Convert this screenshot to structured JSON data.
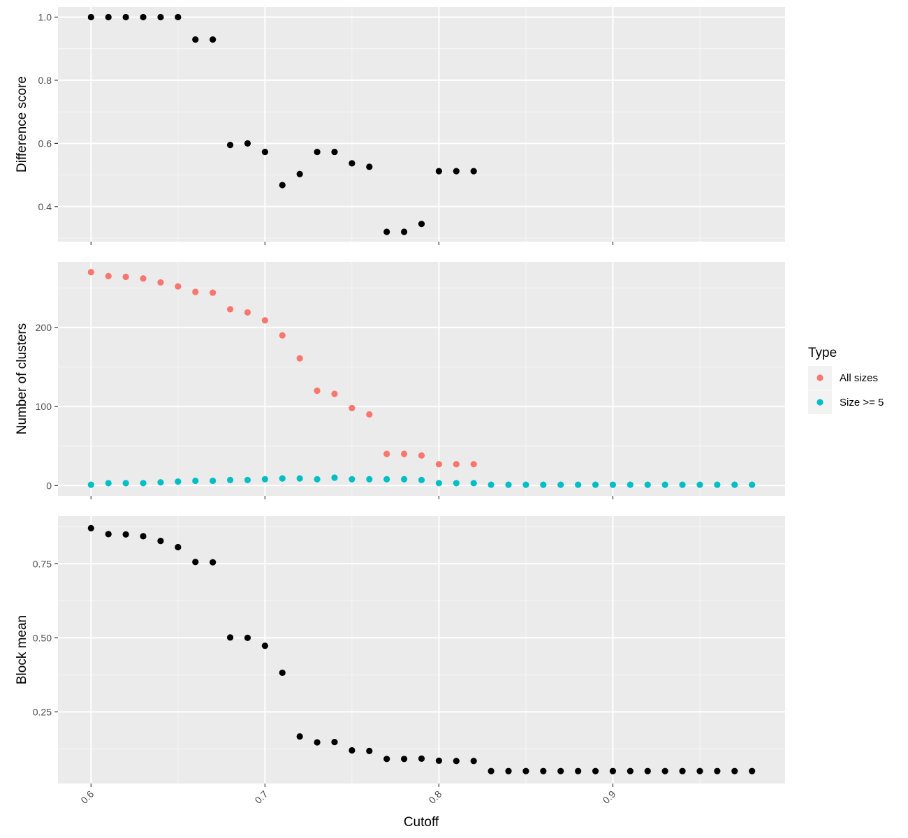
{
  "chart_data": {
    "type": "scatter",
    "xlabel": "Cutoff",
    "xlim": [
      0.581,
      0.999
    ],
    "xticks": [
      0.6,
      0.7,
      0.8,
      0.9
    ],
    "xtick_labels": [
      "0.6",
      "0.7",
      "0.8",
      "0.9"
    ],
    "grid": true,
    "legend": {
      "title": "Type",
      "placement": "right",
      "entries": [
        {
          "label": "All sizes",
          "color": "#F8766D"
        },
        {
          "label": "Size >= 5",
          "color": "#00BFC4"
        }
      ]
    },
    "panels": [
      {
        "id": "difference",
        "ylabel": "Difference score",
        "ylim": [
          0.289,
          1.032
        ],
        "yticks": [
          0.4,
          0.6,
          0.8,
          1.0
        ],
        "ytick_labels": [
          "0.4",
          "0.6",
          "0.8",
          "1.0"
        ],
        "series": [
          {
            "color": "#000000",
            "x": [
              0.6,
              0.61,
              0.62,
              0.63,
              0.64,
              0.65,
              0.66,
              0.67,
              0.68,
              0.69,
              0.7,
              0.71,
              0.72,
              0.73,
              0.74,
              0.75,
              0.76,
              0.77,
              0.78,
              0.79,
              0.8,
              0.81,
              0.82
            ],
            "y": [
              1.0,
              1.0,
              1.0,
              1.0,
              1.0,
              1.0,
              0.929,
              0.929,
              0.595,
              0.6,
              0.573,
              0.468,
              0.503,
              0.573,
              0.573,
              0.537,
              0.526,
              0.32,
              0.32,
              0.345,
              0.512,
              0.512,
              0.512
            ]
          }
        ]
      },
      {
        "id": "clusters",
        "ylabel": "Number of clusters",
        "ylim": [
          -13,
          283
        ],
        "yticks": [
          0,
          100,
          200
        ],
        "ytick_labels": [
          "0",
          "100",
          "200"
        ],
        "series": [
          {
            "name": "All sizes",
            "color": "#F8766D",
            "x": [
              0.6,
              0.61,
              0.62,
              0.63,
              0.64,
              0.65,
              0.66,
              0.67,
              0.68,
              0.69,
              0.7,
              0.71,
              0.72,
              0.73,
              0.74,
              0.75,
              0.76,
              0.77,
              0.78,
              0.79,
              0.8,
              0.81,
              0.82
            ],
            "y": [
              270,
              265,
              264,
              262,
              257,
              252,
              245,
              244,
              223,
              219,
              209,
              190,
              161,
              120,
              116,
              98,
              90,
              40,
              40,
              38,
              27,
              27,
              27
            ]
          },
          {
            "name": "Size >= 5",
            "color": "#00BFC4",
            "x": [
              0.6,
              0.61,
              0.62,
              0.63,
              0.64,
              0.65,
              0.66,
              0.67,
              0.68,
              0.69,
              0.7,
              0.71,
              0.72,
              0.73,
              0.74,
              0.75,
              0.76,
              0.77,
              0.78,
              0.79,
              0.8,
              0.81,
              0.82,
              0.83,
              0.84,
              0.85,
              0.86,
              0.87,
              0.88,
              0.89,
              0.9,
              0.91,
              0.92,
              0.93,
              0.94,
              0.95,
              0.96,
              0.97,
              0.98
            ],
            "y": [
              1,
              3,
              3,
              3,
              4,
              5,
              6,
              6,
              7,
              7,
              8,
              9,
              9,
              8,
              10,
              8,
              8,
              8,
              8,
              7,
              3,
              3,
              3,
              1,
              1,
              1,
              1,
              1,
              1,
              1,
              1,
              1,
              1,
              1,
              1,
              1,
              1,
              1,
              1
            ]
          }
        ]
      },
      {
        "id": "block",
        "ylabel": "Block mean",
        "ylim": [
          0.008,
          0.911
        ],
        "yticks": [
          0.25,
          0.5,
          0.75
        ],
        "ytick_labels": [
          "0.25",
          "0.50",
          "0.75"
        ],
        "series": [
          {
            "color": "#000000",
            "x": [
              0.6,
              0.61,
              0.62,
              0.63,
              0.64,
              0.65,
              0.66,
              0.67,
              0.68,
              0.69,
              0.7,
              0.71,
              0.72,
              0.73,
              0.74,
              0.75,
              0.76,
              0.77,
              0.78,
              0.79,
              0.8,
              0.81,
              0.82,
              0.83,
              0.84,
              0.85,
              0.86,
              0.87,
              0.88,
              0.89,
              0.9,
              0.91,
              0.92,
              0.93,
              0.94,
              0.95,
              0.96,
              0.97,
              0.98
            ],
            "y": [
              0.87,
              0.85,
              0.849,
              0.843,
              0.827,
              0.806,
              0.756,
              0.755,
              0.501,
              0.5,
              0.473,
              0.382,
              0.167,
              0.147,
              0.148,
              0.12,
              0.118,
              0.091,
              0.091,
              0.092,
              0.085,
              0.084,
              0.084,
              0.05,
              0.05,
              0.05,
              0.05,
              0.05,
              0.05,
              0.05,
              0.05,
              0.05,
              0.05,
              0.05,
              0.05,
              0.05,
              0.05,
              0.05,
              0.05
            ]
          }
        ]
      }
    ]
  }
}
